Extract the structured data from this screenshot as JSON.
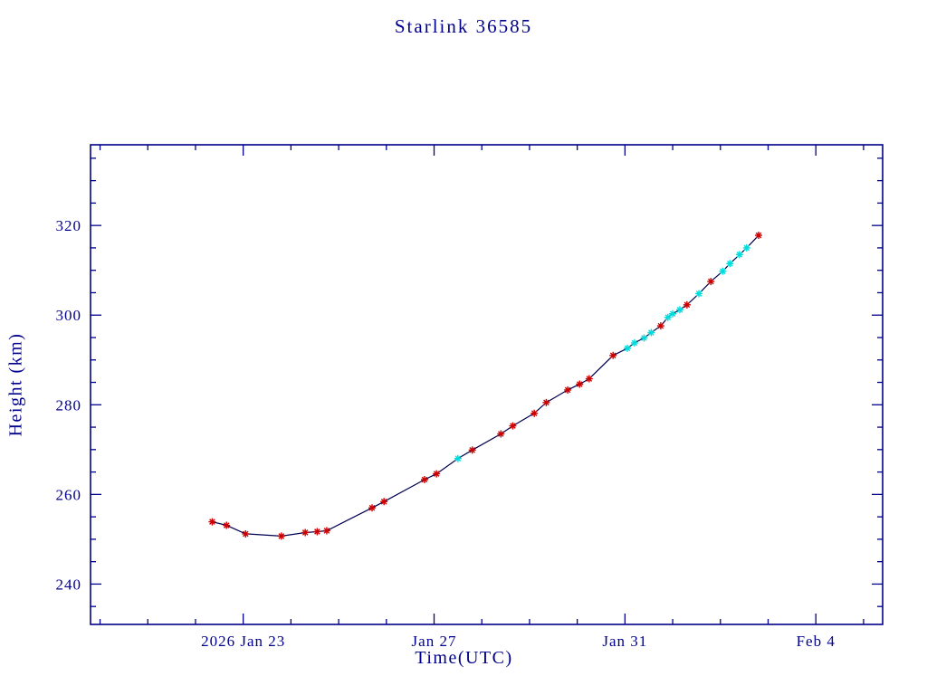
{
  "page": {
    "background": "#ffffff"
  },
  "chart_data": {
    "type": "line",
    "title": "Starlink 36585",
    "xlabel": "Time(UTC)",
    "ylabel": "Height (km)",
    "legend": "none",
    "grid": "off",
    "axis_color": "#00008b",
    "line_color": "#000050",
    "marker_shape": "asterisk",
    "marker_colors": {
      "red": "#cc0000",
      "cyan": "#00dcdc"
    },
    "xlim": [
      19.8,
      36.4
    ],
    "ylim": [
      231,
      338
    ],
    "x_axis_unit": "day number, Jan 2026 continued (23 = Jan 23, 35 = Feb 4)",
    "x_ticks": [
      {
        "value": 23,
        "label": "2026 Jan 23"
      },
      {
        "value": 27,
        "label": "Jan 27"
      },
      {
        "value": 31,
        "label": "Jan 31"
      },
      {
        "value": 35,
        "label": "Feb  4"
      }
    ],
    "x_minor_step": 1,
    "y_ticks": [
      {
        "value": 240,
        "label": "240"
      },
      {
        "value": 260,
        "label": "260"
      },
      {
        "value": 280,
        "label": "280"
      },
      {
        "value": 300,
        "label": "300"
      },
      {
        "value": 320,
        "label": "320"
      }
    ],
    "y_minor_step": 5,
    "points": [
      {
        "x": 22.35,
        "y": 253.9,
        "c": "red"
      },
      {
        "x": 22.65,
        "y": 253.1,
        "c": "red"
      },
      {
        "x": 23.05,
        "y": 251.2,
        "c": "red"
      },
      {
        "x": 23.8,
        "y": 250.7,
        "c": "red"
      },
      {
        "x": 24.3,
        "y": 251.5,
        "c": "red"
      },
      {
        "x": 24.55,
        "y": 251.7,
        "c": "red"
      },
      {
        "x": 24.75,
        "y": 251.9,
        "c": "red"
      },
      {
        "x": 25.7,
        "y": 257.0,
        "c": "red"
      },
      {
        "x": 25.95,
        "y": 258.4,
        "c": "red"
      },
      {
        "x": 26.8,
        "y": 263.3,
        "c": "red"
      },
      {
        "x": 27.05,
        "y": 264.6,
        "c": "red"
      },
      {
        "x": 27.5,
        "y": 268.0,
        "c": "cyan"
      },
      {
        "x": 27.8,
        "y": 269.9,
        "c": "red"
      },
      {
        "x": 28.4,
        "y": 273.5,
        "c": "red"
      },
      {
        "x": 28.65,
        "y": 275.3,
        "c": "red"
      },
      {
        "x": 29.1,
        "y": 278.1,
        "c": "red"
      },
      {
        "x": 29.35,
        "y": 280.5,
        "c": "red"
      },
      {
        "x": 29.8,
        "y": 283.3,
        "c": "red"
      },
      {
        "x": 30.05,
        "y": 284.6,
        "c": "red"
      },
      {
        "x": 30.25,
        "y": 285.8,
        "c": "red"
      },
      {
        "x": 30.75,
        "y": 291.0,
        "c": "red"
      },
      {
        "x": 31.05,
        "y": 292.6,
        "c": "cyan"
      },
      {
        "x": 31.2,
        "y": 293.8,
        "c": "cyan"
      },
      {
        "x": 31.4,
        "y": 294.9,
        "c": "cyan"
      },
      {
        "x": 31.55,
        "y": 296.1,
        "c": "cyan"
      },
      {
        "x": 31.75,
        "y": 297.6,
        "c": "red"
      },
      {
        "x": 31.9,
        "y": 299.5,
        "c": "cyan"
      },
      {
        "x": 32.0,
        "y": 300.3,
        "c": "cyan"
      },
      {
        "x": 32.15,
        "y": 301.2,
        "c": "cyan"
      },
      {
        "x": 32.3,
        "y": 302.3,
        "c": "red"
      },
      {
        "x": 32.55,
        "y": 304.8,
        "c": "cyan"
      },
      {
        "x": 32.8,
        "y": 307.5,
        "c": "red"
      },
      {
        "x": 33.05,
        "y": 309.8,
        "c": "cyan"
      },
      {
        "x": 33.2,
        "y": 311.5,
        "c": "cyan"
      },
      {
        "x": 33.4,
        "y": 313.5,
        "c": "cyan"
      },
      {
        "x": 33.55,
        "y": 315.0,
        "c": "cyan"
      },
      {
        "x": 33.8,
        "y": 317.8,
        "c": "red"
      }
    ]
  }
}
